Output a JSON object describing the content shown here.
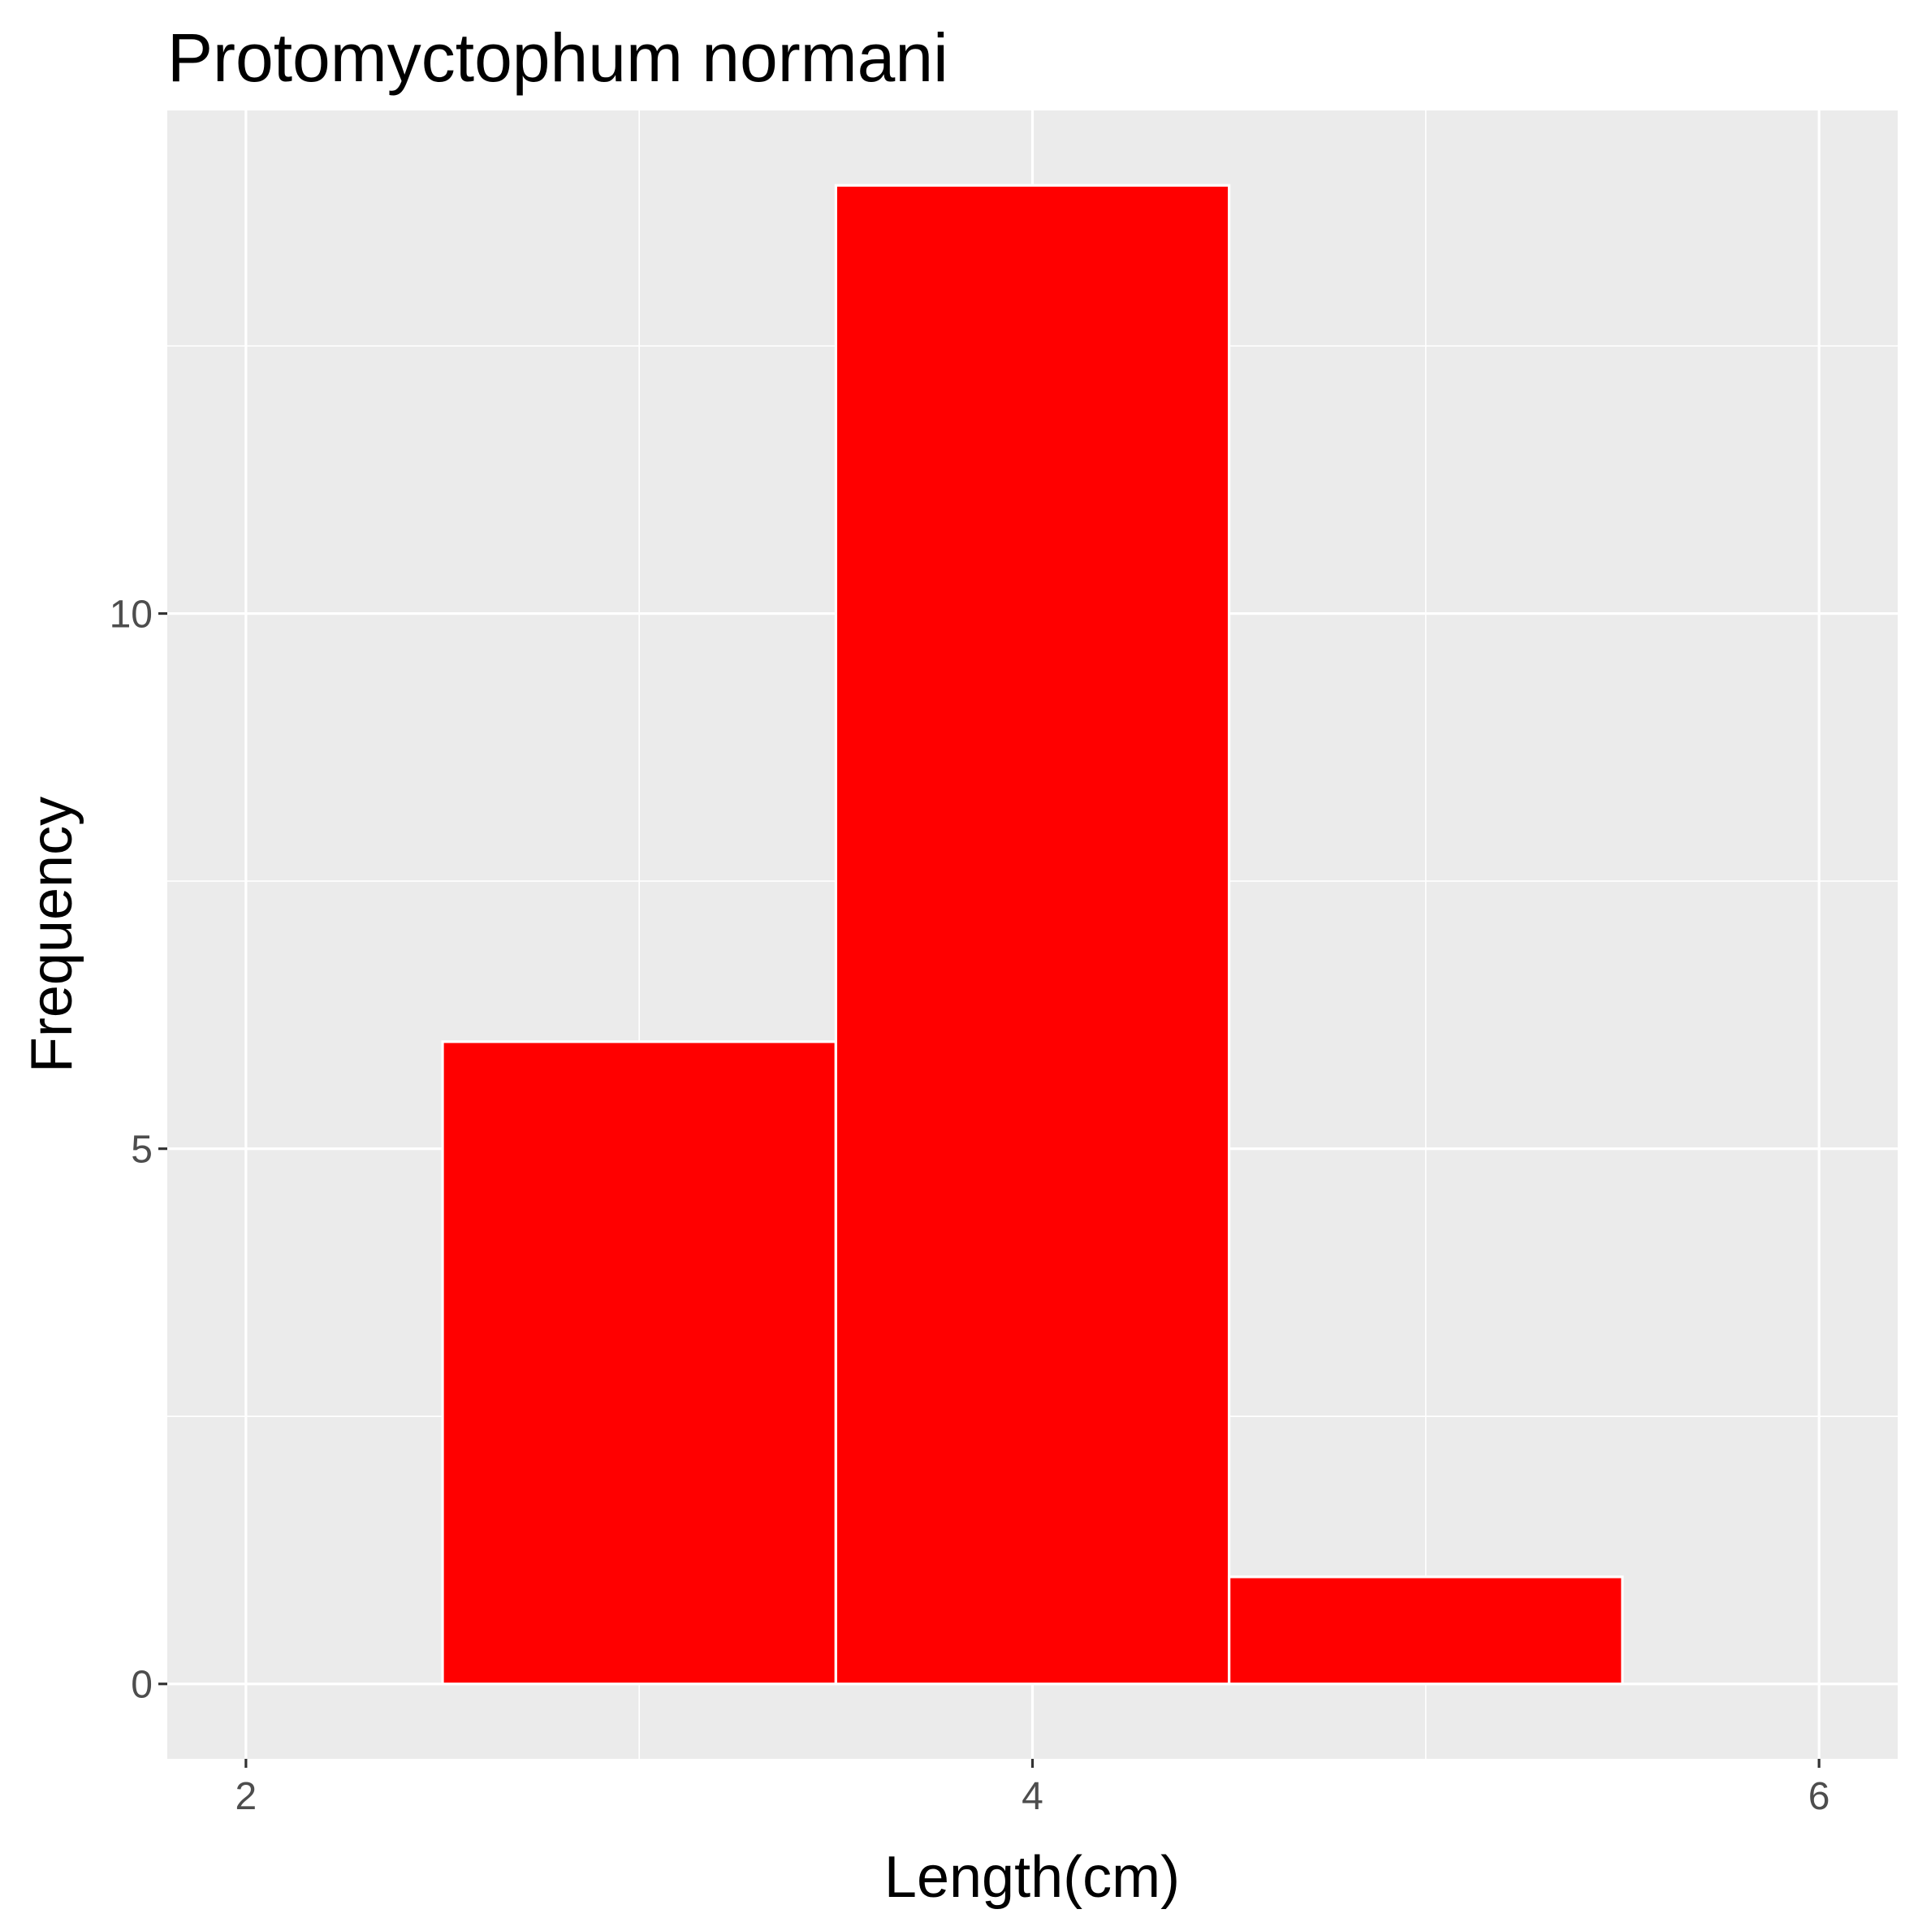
{
  "chart_data": {
    "type": "bar",
    "title": "Protomyctophum normani",
    "xlabel": "Length(cm)",
    "ylabel": "Frequency",
    "bins": [
      {
        "x_start": 2.5,
        "x_end": 3.5,
        "value": 6
      },
      {
        "x_start": 3.5,
        "x_end": 4.5,
        "value": 14
      },
      {
        "x_start": 4.5,
        "x_end": 5.5,
        "value": 1
      }
    ],
    "xlim": [
      1.8,
      6.2
    ],
    "ylim": [
      -0.7,
      14.7
    ],
    "x_ticks": [
      "2",
      "4",
      "6"
    ],
    "x_tick_values": [
      2,
      4,
      6
    ],
    "x_minor_values": [
      3,
      5
    ],
    "y_ticks": [
      "0",
      "5",
      "10"
    ],
    "y_tick_values": [
      0,
      5,
      10
    ],
    "y_minor_values": [
      2.5,
      7.5,
      12.5
    ],
    "grid": true,
    "colors": {
      "bar_fill": "#FF0000",
      "bar_outline": "#FFFFFF",
      "panel": "#EBEBEB",
      "grid": "#FFFFFF"
    }
  }
}
